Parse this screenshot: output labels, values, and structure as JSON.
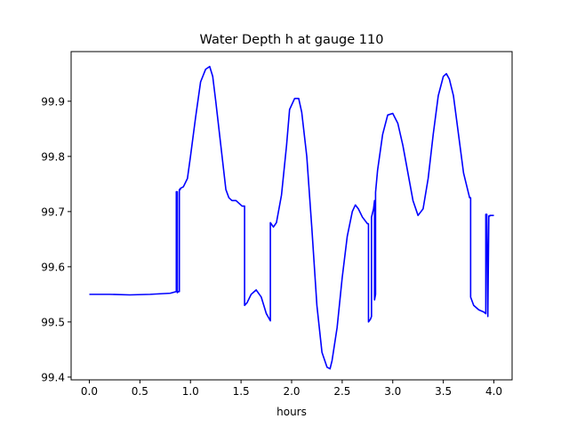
{
  "chart_data": {
    "type": "line",
    "title": "Water Depth h at gauge 110",
    "xlabel": "hours",
    "ylabel": "",
    "xlim": [
      -0.18,
      4.18
    ],
    "ylim": [
      99.395,
      99.99
    ],
    "x_ticks": [
      0.0,
      0.5,
      1.0,
      1.5,
      2.0,
      2.5,
      3.0,
      3.5,
      4.0
    ],
    "x_tick_labels": [
      "0.0",
      "0.5",
      "1.0",
      "1.5",
      "2.0",
      "2.5",
      "3.0",
      "3.5",
      "4.0"
    ],
    "y_ticks": [
      99.4,
      99.5,
      99.6,
      99.7,
      99.8,
      99.9
    ],
    "y_tick_labels": [
      "99.4",
      "99.5",
      "99.6",
      "99.7",
      "99.8",
      "99.9"
    ],
    "grid": false,
    "line_color": "#0000ff",
    "series": [
      {
        "name": "",
        "x": [
          0.0,
          0.2,
          0.4,
          0.6,
          0.8,
          0.86,
          0.86,
          0.87,
          0.87,
          0.88,
          0.89,
          0.89,
          0.9,
          0.9,
          0.93,
          0.97,
          1.0,
          1.05,
          1.1,
          1.15,
          1.19,
          1.22,
          1.25,
          1.3,
          1.35,
          1.38,
          1.41,
          1.45,
          1.48,
          1.51,
          1.535,
          1.535,
          1.56,
          1.6,
          1.65,
          1.7,
          1.75,
          1.79,
          1.79,
          1.82,
          1.85,
          1.9,
          1.95,
          1.98,
          2.03,
          2.07,
          2.1,
          2.15,
          2.2,
          2.25,
          2.3,
          2.35,
          2.38,
          2.4,
          2.45,
          2.5,
          2.55,
          2.6,
          2.63,
          2.66,
          2.7,
          2.75,
          2.76,
          2.76,
          2.78,
          2.79,
          2.79,
          2.81,
          2.82,
          2.82,
          2.83,
          2.83,
          2.85,
          2.9,
          2.95,
          3.0,
          3.05,
          3.1,
          3.15,
          3.2,
          3.25,
          3.3,
          3.35,
          3.4,
          3.45,
          3.5,
          3.53,
          3.56,
          3.6,
          3.65,
          3.7,
          3.76,
          3.77,
          3.77,
          3.8,
          3.85,
          3.9,
          3.92,
          3.92,
          3.93,
          3.94,
          3.94,
          3.95,
          3.96,
          3.96,
          4.0
        ],
        "y": [
          99.55,
          99.55,
          99.549,
          99.55,
          99.552,
          99.555,
          99.736,
          99.736,
          99.553,
          99.555,
          99.555,
          99.74,
          99.74,
          99.742,
          99.745,
          99.76,
          99.8,
          99.87,
          99.935,
          99.958,
          99.963,
          99.945,
          99.9,
          99.82,
          99.74,
          99.725,
          99.72,
          99.72,
          99.715,
          99.71,
          99.71,
          99.53,
          99.535,
          99.55,
          99.558,
          99.545,
          99.515,
          99.502,
          99.68,
          99.672,
          99.68,
          99.73,
          99.82,
          99.885,
          99.905,
          99.905,
          99.88,
          99.8,
          99.67,
          99.53,
          99.445,
          99.418,
          99.415,
          99.43,
          99.49,
          99.58,
          99.655,
          99.7,
          99.712,
          99.705,
          99.69,
          99.678,
          99.678,
          99.5,
          99.505,
          99.51,
          99.69,
          99.705,
          99.72,
          99.54,
          99.55,
          99.735,
          99.775,
          99.84,
          99.875,
          99.878,
          99.86,
          99.82,
          99.77,
          99.72,
          99.693,
          99.705,
          99.76,
          99.84,
          99.91,
          99.945,
          99.95,
          99.94,
          99.91,
          99.84,
          99.77,
          99.725,
          99.725,
          99.545,
          99.53,
          99.522,
          99.518,
          99.515,
          99.695,
          99.695,
          99.51,
          99.51,
          99.692,
          99.692,
          99.693,
          99.693
        ]
      }
    ]
  }
}
